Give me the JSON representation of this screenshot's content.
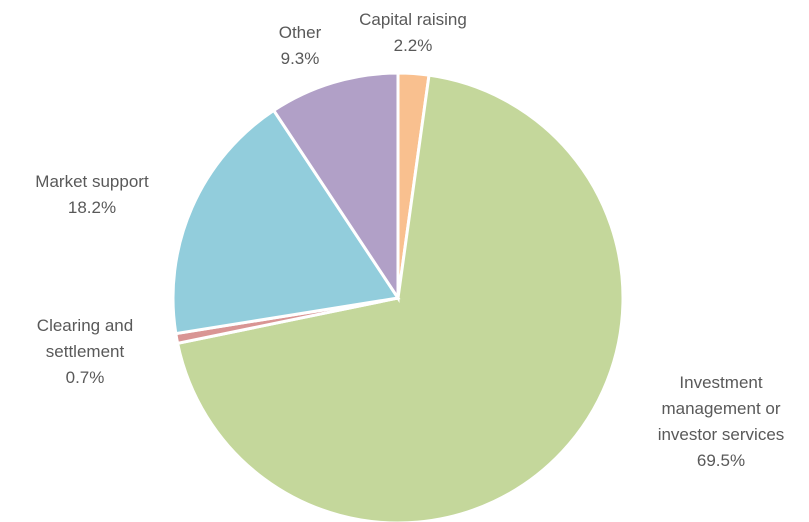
{
  "chart_data": {
    "type": "pie",
    "categories": [
      "Capital raising",
      "Investment management or investor services",
      "Clearing and settlement",
      "Market support",
      "Other"
    ],
    "values": [
      2.2,
      69.5,
      0.7,
      18.2,
      9.3
    ],
    "value_labels": [
      "2.2%",
      "69.5%",
      "0.7%",
      "18.2%",
      "9.3%"
    ],
    "colors": [
      "#f9c08f",
      "#c4d79b",
      "#d99594",
      "#92cddc",
      "#b1a0c7"
    ]
  }
}
